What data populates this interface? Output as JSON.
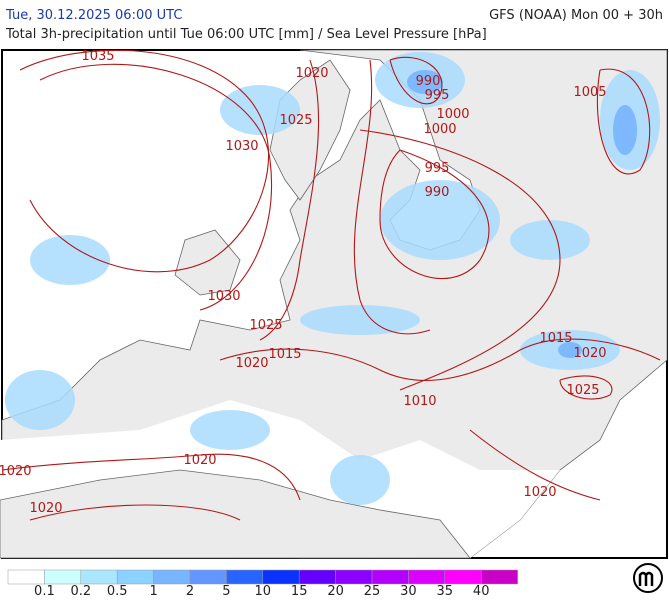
{
  "header": {
    "date": "Tue, 30.12.2025 06:00 UTC",
    "model": "GFS (NOAA) Mon 00 + 30h",
    "subtitle": "Total 3h-precipitation until Tue 06:00 UTC [mm] / Sea Level Pressure [hPa]"
  },
  "isobar_labels": [
    "1035",
    "1020",
    "1025",
    "1030",
    "990",
    "995",
    "1000",
    "1000",
    "1005",
    "995",
    "990",
    "1030",
    "1025",
    "1015",
    "1020",
    "1015",
    "1020",
    "1025",
    "1010",
    "1020",
    "1020",
    "1020",
    "1020"
  ],
  "legend": {
    "colors": [
      "#ffffff",
      "#ccffff",
      "#aae6ff",
      "#8cd2ff",
      "#78b4ff",
      "#6496ff",
      "#2864ff",
      "#0a32ff",
      "#6400ff",
      "#8c00ff",
      "#b400ff",
      "#dc00ff",
      "#ff00ff",
      "#c800c8"
    ],
    "labels": [
      0.1,
      0.2,
      0.5,
      1,
      2,
      5,
      10,
      15,
      20,
      25,
      30,
      35,
      40
    ]
  }
}
